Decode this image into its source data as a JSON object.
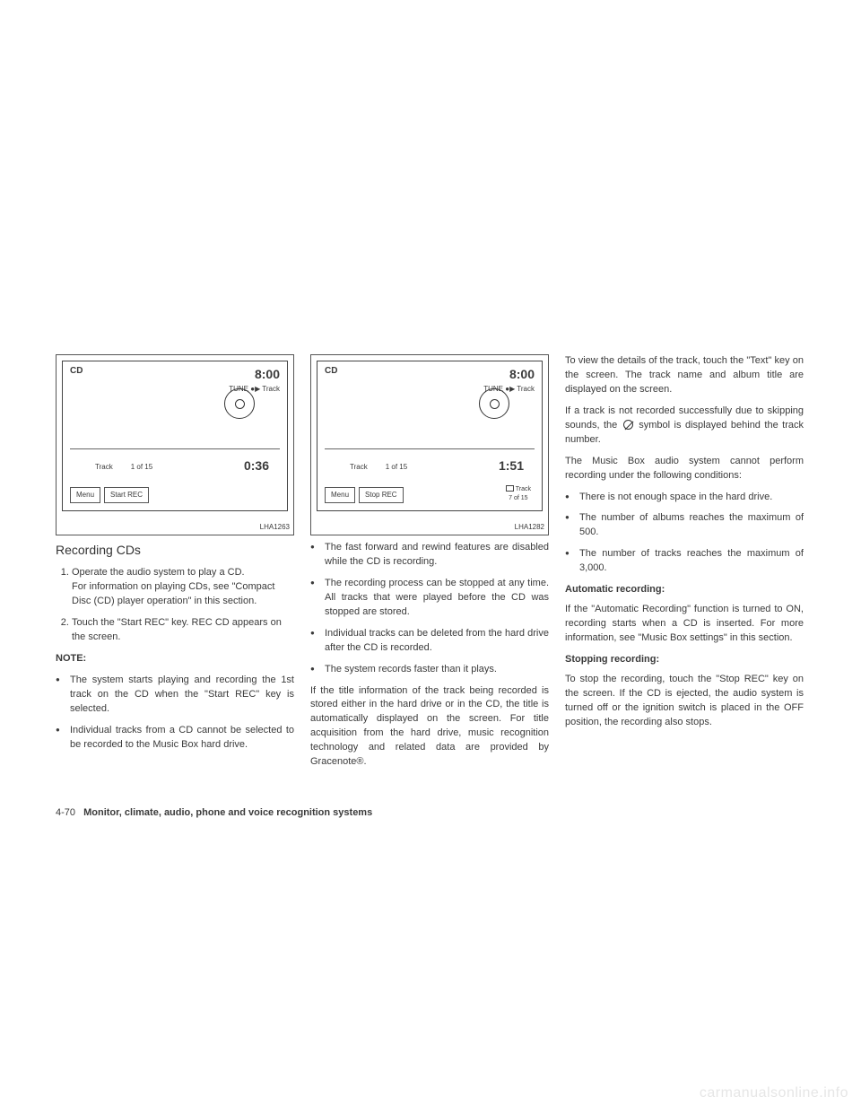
{
  "figure1": {
    "source_label": "CD",
    "clock": "8:00",
    "tune_label": "TUNE ●▶ Track",
    "track_label": "Track",
    "track_count": "1 of 15",
    "elapsed": "0:36",
    "menu_btn": "Menu",
    "rec_btn": "Start REC",
    "code": "LHA1263"
  },
  "figure2": {
    "source_label": "CD",
    "clock": "8:00",
    "tune_label": "TUNE ●▶ Track",
    "track_label": "Track",
    "track_count": "1 of 15",
    "elapsed": "1:51",
    "menu_btn": "Menu",
    "rec_btn": "Stop REC",
    "rec_track_label": "Track",
    "rec_track_count": "7 of 15",
    "code": "LHA1282"
  },
  "col1": {
    "heading": "Recording CDs",
    "step1a": "Operate the audio system to play a CD.",
    "step1b": "For information on playing CDs, see \"Compact Disc (CD) player operation\" in this section.",
    "step2": "Touch the \"Start REC\" key. REC CD appears on the screen.",
    "note_label": "NOTE:",
    "note1": "The system starts playing and recording the 1st track on the CD when the \"Start REC\" key is selected.",
    "note2": "Individual tracks from a CD cannot be selected to be recorded to the Music Box hard drive."
  },
  "col2": {
    "b1": "The fast forward and rewind features are disabled while the CD is recording.",
    "b2": "The recording process can be stopped at any time. All tracks that were played before the CD was stopped are stored.",
    "b3": "Individual tracks can be deleted from the hard drive after the CD is recorded.",
    "b4": "The system records faster than it plays.",
    "p1": "If the title information of the track being recorded is stored either in the hard drive or in the CD, the title is automatically displayed on the screen. For title acquisition from the hard drive, music recognition technology and related data are provided by Gracenote®."
  },
  "col3": {
    "p1": "To view the details of the track, touch the \"Text\" key on the screen. The track name and album title are displayed on the screen.",
    "p2a": "If a track is not recorded successfully due to skipping sounds, the",
    "p2b": "symbol is displayed behind the track number.",
    "p3": "The Music Box audio system cannot perform recording under the following conditions:",
    "b1": "There is not enough space in the hard drive.",
    "b2": "The number of albums reaches the maximum of 500.",
    "b3": "The number of tracks reaches the maximum of 3,000.",
    "h1": "Automatic recording:",
    "p4": "If the \"Automatic Recording\" function is turned to ON, recording starts when a CD is inserted. For more information, see \"Music Box settings\" in this section.",
    "h2": "Stopping recording:",
    "p5": "To stop the recording, touch the \"Stop REC\" key on the screen. If the CD is ejected, the audio system is turned off or the ignition switch is placed in the OFF position, the recording also stops."
  },
  "footer": {
    "pagenum": "4-70",
    "section": "Monitor, climate, audio, phone and voice recognition systems"
  },
  "watermark": "carmanualsonline.info"
}
